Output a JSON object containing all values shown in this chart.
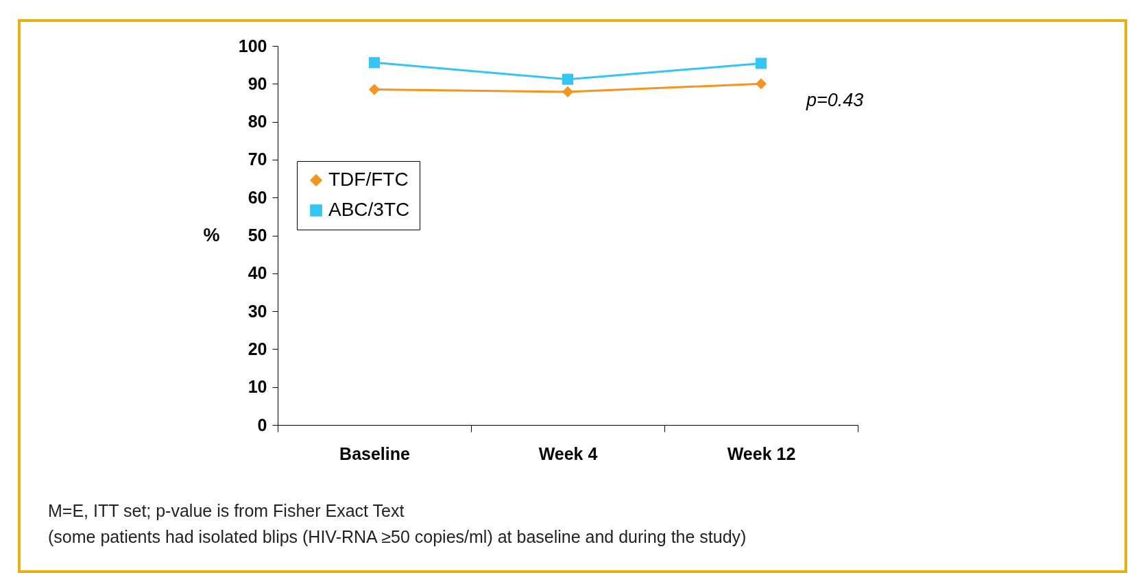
{
  "chart_data": {
    "type": "line",
    "ylabel": "%",
    "categories": [
      "Baseline",
      "Week 4",
      "Week 12"
    ],
    "series": [
      {
        "name": "TDF/FTC",
        "color": "#f7941d",
        "marker": "diamond",
        "values": [
          88.5,
          87.9,
          90.0
        ]
      },
      {
        "name": "ABC/3TC",
        "color": "#33c5f3",
        "marker": "square",
        "values": [
          95.6,
          91.2,
          95.4
        ]
      }
    ],
    "ylim": [
      0,
      100
    ],
    "yticks": [
      0,
      10,
      20,
      30,
      40,
      50,
      60,
      70,
      80,
      90,
      100
    ],
    "grid": false,
    "legend": "left",
    "line_style": "solid",
    "annotations": [
      "p=0.43",
      "M=E, ITT set;  p-value is from Fisher Exact Text",
      "(some patients had isolated blips (HIV-RNA ≥50 copies/ml) at baseline and during the study)"
    ]
  }
}
